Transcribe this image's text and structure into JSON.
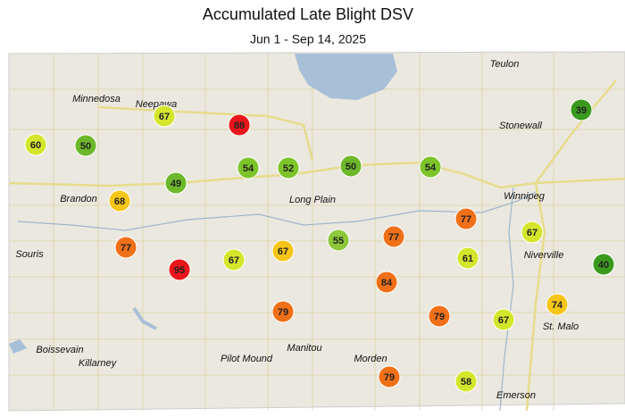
{
  "title": "Accumulated Late Blight DSV",
  "subtitle": "Jun 1 - Sep 14, 2025",
  "towns": [
    "Teulon",
    "Minnedosa",
    "Neepawa",
    "Stonewall",
    "Winnipeg",
    "Brandon",
    "Long Plain",
    "Souris",
    "Niverville",
    "St. Malo",
    "Boissevain",
    "Manitou",
    "Killarney",
    "Pilot Mound",
    "Morden",
    "Emerson"
  ],
  "stations": [
    {
      "value": 67,
      "color": "#d4e62c"
    },
    {
      "value": 88,
      "color": "#e8151a"
    },
    {
      "value": 60,
      "color": "#d4e62c"
    },
    {
      "value": 50,
      "color": "#6cb82a"
    },
    {
      "value": 54,
      "color": "#7cc42a"
    },
    {
      "value": 52,
      "color": "#7cc42a"
    },
    {
      "value": 50,
      "color": "#6cb82a"
    },
    {
      "value": 54,
      "color": "#7cc42a"
    },
    {
      "value": 39,
      "color": "#3a9a1e"
    },
    {
      "value": 49,
      "color": "#6cb82a"
    },
    {
      "value": 68,
      "color": "#f5c518"
    },
    {
      "value": 77,
      "color": "#f07018"
    },
    {
      "value": 77,
      "color": "#f07018"
    },
    {
      "value": 95,
      "color": "#e8151a"
    },
    {
      "value": 67,
      "color": "#d4e62c"
    },
    {
      "value": 67,
      "color": "#f5c518"
    },
    {
      "value": 55,
      "color": "#8cc83a"
    },
    {
      "value": 77,
      "color": "#f07018"
    },
    {
      "value": 67,
      "color": "#d4e62c"
    },
    {
      "value": 61,
      "color": "#d4e62c"
    },
    {
      "value": 40,
      "color": "#3a9a1e"
    },
    {
      "value": 84,
      "color": "#f07018"
    },
    {
      "value": 79,
      "color": "#f07018"
    },
    {
      "value": 79,
      "color": "#f07018"
    },
    {
      "value": 67,
      "color": "#d4e62c"
    },
    {
      "value": 74,
      "color": "#f5c518"
    },
    {
      "value": 79,
      "color": "#f07018"
    },
    {
      "value": 58,
      "color": "#d4e62c"
    }
  ]
}
